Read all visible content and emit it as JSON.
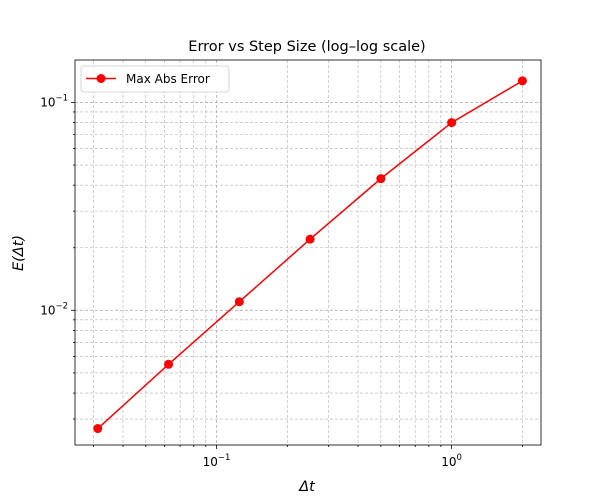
{
  "chart_data": {
    "type": "line",
    "title": "Error vs Step Size (log–log scale)",
    "xlabel": "Δt",
    "ylabel": "E(Δt)",
    "xscale": "log",
    "yscale": "log",
    "xlim": [
      0.025,
      2.4
    ],
    "ylim": [
      0.00225,
      0.16
    ],
    "grid": "major-and-minor",
    "legend_position": "top-left",
    "x_ticks": [
      {
        "base": "10",
        "exp": "−1",
        "value": 0.1
      },
      {
        "base": "10",
        "exp": "0",
        "value": 1
      }
    ],
    "y_ticks": [
      {
        "base": "10",
        "exp": "−2",
        "value": 0.01
      },
      {
        "base": "10",
        "exp": "−1",
        "value": 0.1
      }
    ],
    "series": [
      {
        "name": "Max Abs Error",
        "color": "#ff0000",
        "marker": "circle",
        "x": [
          0.03125,
          0.0625,
          0.125,
          0.25,
          0.5,
          1.0,
          2.0
        ],
        "y": [
          0.0027,
          0.0055,
          0.011,
          0.022,
          0.043,
          0.08,
          0.127
        ]
      }
    ]
  }
}
